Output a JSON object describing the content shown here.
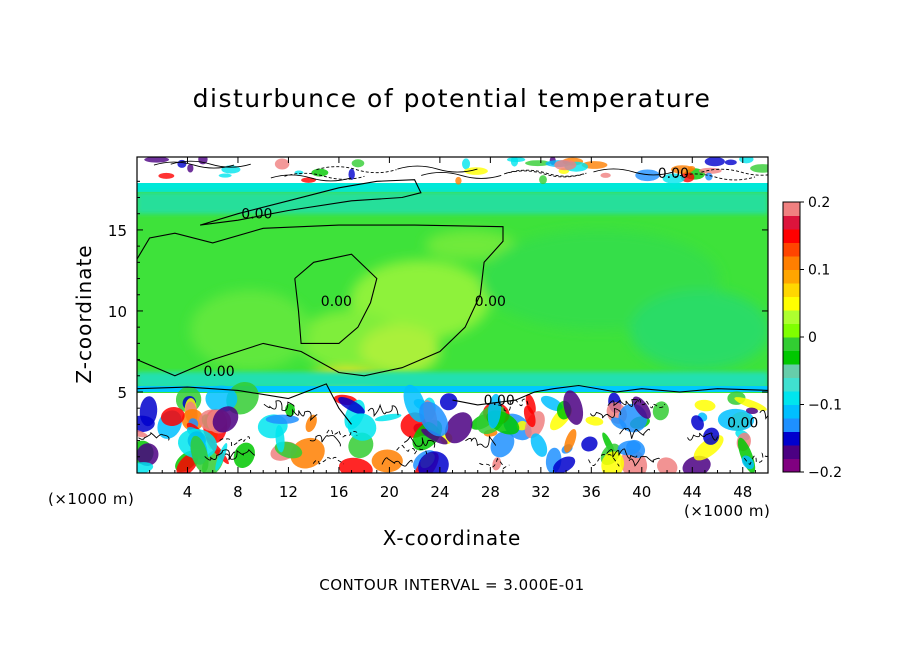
{
  "chart_data": {
    "type": "heatmap",
    "title": "disturbunce of potential temperature",
    "xlabel": "X-coordinate",
    "ylabel": "Z-coordinate",
    "x_unit": "(×1000 m)",
    "y_unit": "(×1000 m)",
    "xlim": [
      0,
      50
    ],
    "ylim": [
      0,
      19.5
    ],
    "x_ticks": [
      4,
      8,
      12,
      16,
      20,
      24,
      28,
      32,
      36,
      40,
      44,
      48
    ],
    "y_ticks": [
      5,
      10,
      15
    ],
    "colorbar": {
      "min": -0.2,
      "max": 0.2,
      "ticks": [
        -0.2,
        -0.1,
        0,
        0.1,
        0.2
      ],
      "tick_labels": [
        "−0.2",
        "−0.1",
        "0",
        "0.1",
        "0.2"
      ],
      "colors": [
        "#800080",
        "#4b0082",
        "#0000cd",
        "#1e90ff",
        "#00bfff",
        "#00e5ee",
        "#40e0d0",
        "#66cdaa",
        "#00c800",
        "#32cd32",
        "#7fff00",
        "#adff2f",
        "#ffff00",
        "#ffd700",
        "#ffa500",
        "#ff7f00",
        "#ff4500",
        "#ff0000",
        "#dc143c",
        "#f08080"
      ]
    },
    "contour_labels": [
      {
        "text": "0.00",
        "x": 9.5,
        "z": 15.7
      },
      {
        "text": "0.00",
        "x": 42.5,
        "z": 18.2
      },
      {
        "text": "0.00",
        "x": 15.8,
        "z": 10.3
      },
      {
        "text": "0.00",
        "x": 28.0,
        "z": 10.3
      },
      {
        "text": "0.00",
        "x": 6.5,
        "z": 6.0
      },
      {
        "text": "0.00",
        "x": 28.7,
        "z": 4.2
      },
      {
        "text": "0.00",
        "x": 48.0,
        "z": 2.8
      }
    ],
    "contour_interval_text": "CONTOUR INTERVAL = 3.000E-01",
    "grid": false
  }
}
